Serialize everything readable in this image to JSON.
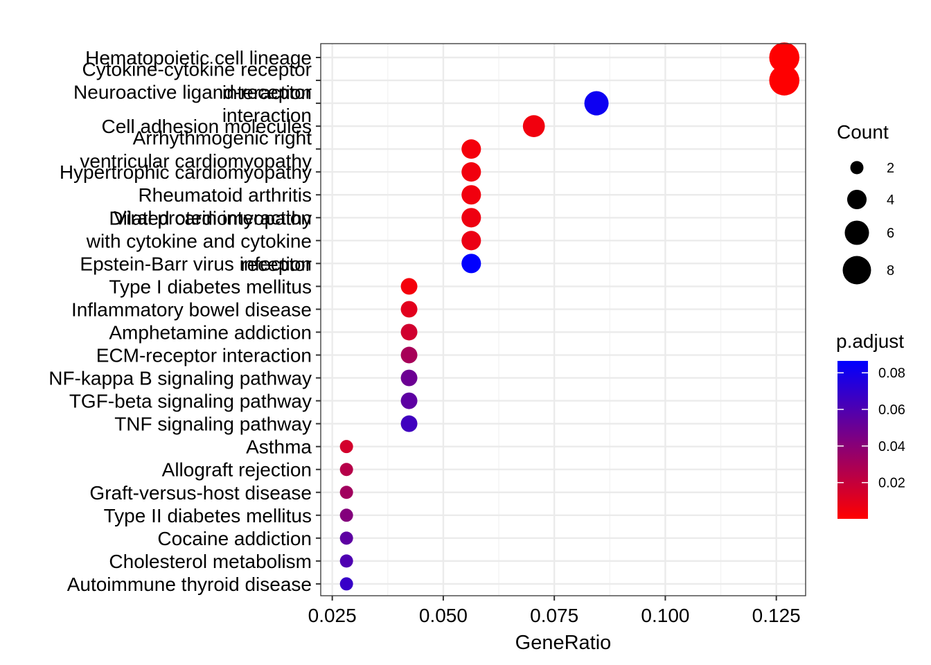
{
  "chart_data": {
    "type": "scatter",
    "title": "",
    "xlabel": "GeneRatio",
    "ylabel": "",
    "xlim": [
      0.0224,
      0.1316
    ],
    "x_ticks": [
      0.025,
      0.05,
      0.075,
      0.1,
      0.125
    ],
    "x_tick_labels": [
      "0.025",
      "0.050",
      "0.075",
      "0.100",
      "0.125"
    ],
    "grid": true,
    "legend_position": "right",
    "points": [
      {
        "term": "Hematopoietic cell lineage",
        "gene_ratio": 0.1268,
        "count": 9,
        "p_adjust": 0.0005
      },
      {
        "term": "Cytokine-cytokine receptor interaction",
        "gene_ratio": 0.1268,
        "count": 9,
        "p_adjust": 0.0005
      },
      {
        "term": "Neuroactive ligand-receptor interaction",
        "gene_ratio": 0.0845,
        "count": 6,
        "p_adjust": 0.082
      },
      {
        "term": "Cell adhesion molecules",
        "gene_ratio": 0.0704,
        "count": 5,
        "p_adjust": 0.005
      },
      {
        "term": "Arrhythmogenic right ventricular cardiomyopathy",
        "gene_ratio": 0.0563,
        "count": 4,
        "p_adjust": 0.004
      },
      {
        "term": "Hypertrophic cardiomyopathy",
        "gene_ratio": 0.0563,
        "count": 4,
        "p_adjust": 0.005
      },
      {
        "term": "Rheumatoid arthritis",
        "gene_ratio": 0.0563,
        "count": 4,
        "p_adjust": 0.005
      },
      {
        "term": "Dilated cardiomyopathy",
        "gene_ratio": 0.0563,
        "count": 4,
        "p_adjust": 0.006
      },
      {
        "term": "Viral protein interaction with cytokine and cytokine receptor",
        "gene_ratio": 0.0563,
        "count": 4,
        "p_adjust": 0.007
      },
      {
        "term": "Epstein-Barr virus infection",
        "gene_ratio": 0.0563,
        "count": 4,
        "p_adjust": 0.086
      },
      {
        "term": "Type I diabetes mellitus",
        "gene_ratio": 0.0423,
        "count": 3,
        "p_adjust": 0.004
      },
      {
        "term": "Inflammatory bowel disease",
        "gene_ratio": 0.0423,
        "count": 3,
        "p_adjust": 0.01
      },
      {
        "term": "Amphetamine addiction",
        "gene_ratio": 0.0423,
        "count": 3,
        "p_adjust": 0.016
      },
      {
        "term": "ECM-receptor interaction",
        "gene_ratio": 0.0423,
        "count": 3,
        "p_adjust": 0.03
      },
      {
        "term": "NF-kappa B signaling pathway",
        "gene_ratio": 0.0423,
        "count": 3,
        "p_adjust": 0.05
      },
      {
        "term": "TGF-beta signaling pathway",
        "gene_ratio": 0.0423,
        "count": 3,
        "p_adjust": 0.055
      },
      {
        "term": "TNF signaling pathway",
        "gene_ratio": 0.0423,
        "count": 3,
        "p_adjust": 0.065
      },
      {
        "term": "Asthma",
        "gene_ratio": 0.0282,
        "count": 2,
        "p_adjust": 0.015
      },
      {
        "term": "Allograft rejection",
        "gene_ratio": 0.0282,
        "count": 2,
        "p_adjust": 0.025
      },
      {
        "term": "Graft-versus-host disease",
        "gene_ratio": 0.0282,
        "count": 2,
        "p_adjust": 0.032
      },
      {
        "term": "Type II diabetes mellitus",
        "gene_ratio": 0.0282,
        "count": 2,
        "p_adjust": 0.042
      },
      {
        "term": "Cocaine addiction",
        "gene_ratio": 0.0282,
        "count": 2,
        "p_adjust": 0.055
      },
      {
        "term": "Cholesterol metabolism",
        "gene_ratio": 0.0282,
        "count": 2,
        "p_adjust": 0.06
      },
      {
        "term": "Autoimmune thyroid disease",
        "gene_ratio": 0.0282,
        "count": 2,
        "p_adjust": 0.068
      }
    ],
    "y_labels": [
      [
        "Hematopoietic cell lineage"
      ],
      [
        "Cytokine-cytokine receptor",
        "interaction"
      ],
      [
        "Neuroactive ligand-receptor",
        "interaction"
      ],
      [
        "Cell adhesion molecules"
      ],
      [
        "Arrhythmogenic right",
        "ventricular cardiomyopathy"
      ],
      [
        "Hypertrophic cardiomyopathy"
      ],
      [
        "Rheumatoid arthritis"
      ],
      [
        "Dilated cardiomyopathy"
      ],
      [
        "Viral protein interaction",
        "with cytokine and cytokine",
        "receptor"
      ],
      [
        "Epstein-Barr virus infection"
      ],
      [
        "Type I diabetes mellitus"
      ],
      [
        "Inflammatory bowel disease"
      ],
      [
        "Amphetamine addiction"
      ],
      [
        "ECM-receptor interaction"
      ],
      [
        "NF-kappa B signaling pathway"
      ],
      [
        "TGF-beta signaling pathway"
      ],
      [
        "TNF signaling pathway"
      ],
      [
        "Asthma"
      ],
      [
        "Allograft rejection"
      ],
      [
        "Graft-versus-host disease"
      ],
      [
        "Type II diabetes mellitus"
      ],
      [
        "Cocaine addiction"
      ],
      [
        "Cholesterol metabolism"
      ],
      [
        "Autoimmune thyroid disease"
      ]
    ],
    "size_legend": {
      "title": "Count",
      "values": [
        2,
        4,
        6,
        8
      ],
      "labels": [
        "2",
        "4",
        "6",
        "8"
      ]
    },
    "color_legend": {
      "title": "p.adjust",
      "low_color": "#FF0000",
      "high_color": "#0000FF",
      "range": [
        0.0002,
        0.0865
      ],
      "ticks": [
        0.02,
        0.04,
        0.06,
        0.08
      ],
      "tick_labels": [
        "0.02",
        "0.04",
        "0.06",
        "0.08"
      ]
    },
    "colors": {
      "panel_border": "#333333",
      "grid_major": "#EBEBEB",
      "grid_minor": "#F2F2F2",
      "axis_tick": "#333333"
    }
  }
}
